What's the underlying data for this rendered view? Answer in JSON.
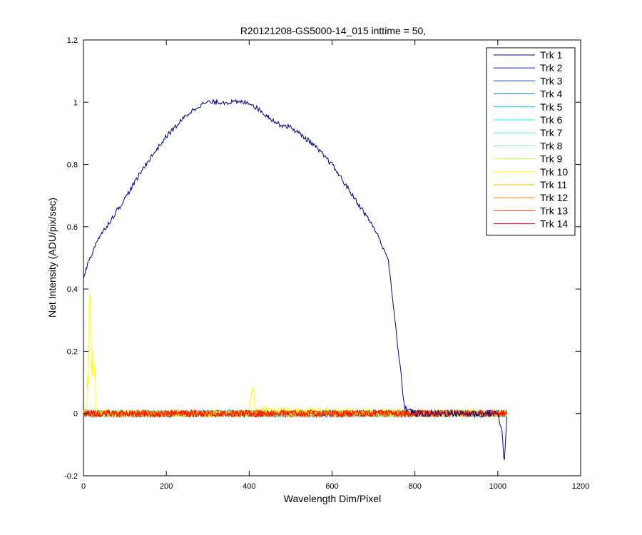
{
  "chart_data": {
    "type": "line",
    "title": "R20121208-GS5000-14_015 inttime = 50,",
    "xlabel": "Wavelength Dim/Pixel",
    "ylabel": "Net Intensity (ADU/pix/sec)",
    "xlim": [
      0,
      1200
    ],
    "ylim": [
      -0.2,
      1.2
    ],
    "xticks": [
      0,
      200,
      400,
      600,
      800,
      1000,
      1200
    ],
    "yticks": [
      -0.2,
      0,
      0.2,
      0.4,
      0.6,
      0.8,
      1,
      1.2
    ],
    "xtick_labels": [
      "0",
      "200",
      "400",
      "600",
      "800",
      "1000",
      "1200"
    ],
    "ytick_labels": [
      "-0.2",
      "0",
      "0.2",
      "0.4",
      "0.6",
      "0.8",
      "1",
      "1.2"
    ],
    "grid": false,
    "legend_position": "top-right",
    "series": [
      {
        "name": "Trk 1",
        "color": "#00008f",
        "x": [
          0,
          10,
          20,
          30,
          50,
          70,
          100,
          150,
          200,
          250,
          280,
          300,
          330,
          360,
          400,
          430,
          470,
          500,
          550,
          600,
          650,
          700,
          735,
          745,
          760,
          775,
          800,
          900,
          1000,
          1010,
          1015,
          1020,
          1023
        ],
        "y": [
          0.44,
          0.48,
          0.51,
          0.55,
          0.59,
          0.63,
          0.69,
          0.8,
          0.89,
          0.96,
          0.99,
          1.0,
          1.0,
          1.0,
          1.0,
          0.97,
          0.93,
          0.92,
          0.87,
          0.8,
          0.7,
          0.6,
          0.5,
          0.38,
          0.2,
          0.02,
          0.0,
          0.0,
          0.0,
          -0.05,
          -0.16,
          -0.06,
          0.0
        ]
      },
      {
        "name": "Trk 2",
        "color": "#0000c0",
        "x": [
          0,
          1023
        ],
        "y": [
          0,
          0
        ]
      },
      {
        "name": "Trk 3",
        "color": "#0040ff",
        "x": [
          0,
          1023
        ],
        "y": [
          0,
          0
        ]
      },
      {
        "name": "Trk 4",
        "color": "#0080ff",
        "x": [
          0,
          1023
        ],
        "y": [
          0,
          0
        ]
      },
      {
        "name": "Trk 5",
        "color": "#00c0ff",
        "x": [
          0,
          1023
        ],
        "y": [
          0,
          0
        ]
      },
      {
        "name": "Trk 6",
        "color": "#00ffff",
        "x": [
          0,
          1023
        ],
        "y": [
          0,
          0
        ]
      },
      {
        "name": "Trk 7",
        "color": "#40ffc0",
        "x": [
          0,
          1023
        ],
        "y": [
          0,
          0
        ]
      },
      {
        "name": "Trk 8",
        "color": "#80ff80",
        "x": [
          0,
          1023
        ],
        "y": [
          0,
          0
        ]
      },
      {
        "name": "Trk 9",
        "color": "#c0ff40",
        "x": [
          0,
          1023
        ],
        "y": [
          0,
          0
        ]
      },
      {
        "name": "Trk 10",
        "color": "#ffff00",
        "x": [
          0,
          8,
          10,
          12,
          15,
          18,
          20,
          22,
          25,
          28,
          30,
          40,
          400,
          405,
          410,
          415,
          1023
        ],
        "y": [
          0,
          0.0,
          0.12,
          0.1,
          0.43,
          0.3,
          0.12,
          0.21,
          0.09,
          0.15,
          0.0,
          0.0,
          0.0,
          0.06,
          0.08,
          0.01,
          0
        ]
      },
      {
        "name": "Trk 11",
        "color": "#ffc000",
        "x": [
          0,
          1023
        ],
        "y": [
          0,
          0
        ]
      },
      {
        "name": "Trk 12",
        "color": "#ff8000",
        "x": [
          0,
          1023
        ],
        "y": [
          0,
          0
        ]
      },
      {
        "name": "Trk 13",
        "color": "#ff4000",
        "x": [
          0,
          1023
        ],
        "y": [
          0,
          0
        ]
      },
      {
        "name": "Trk 14",
        "color": "#ff0000",
        "x": [
          0,
          1023
        ],
        "y": [
          0,
          0
        ]
      }
    ]
  }
}
